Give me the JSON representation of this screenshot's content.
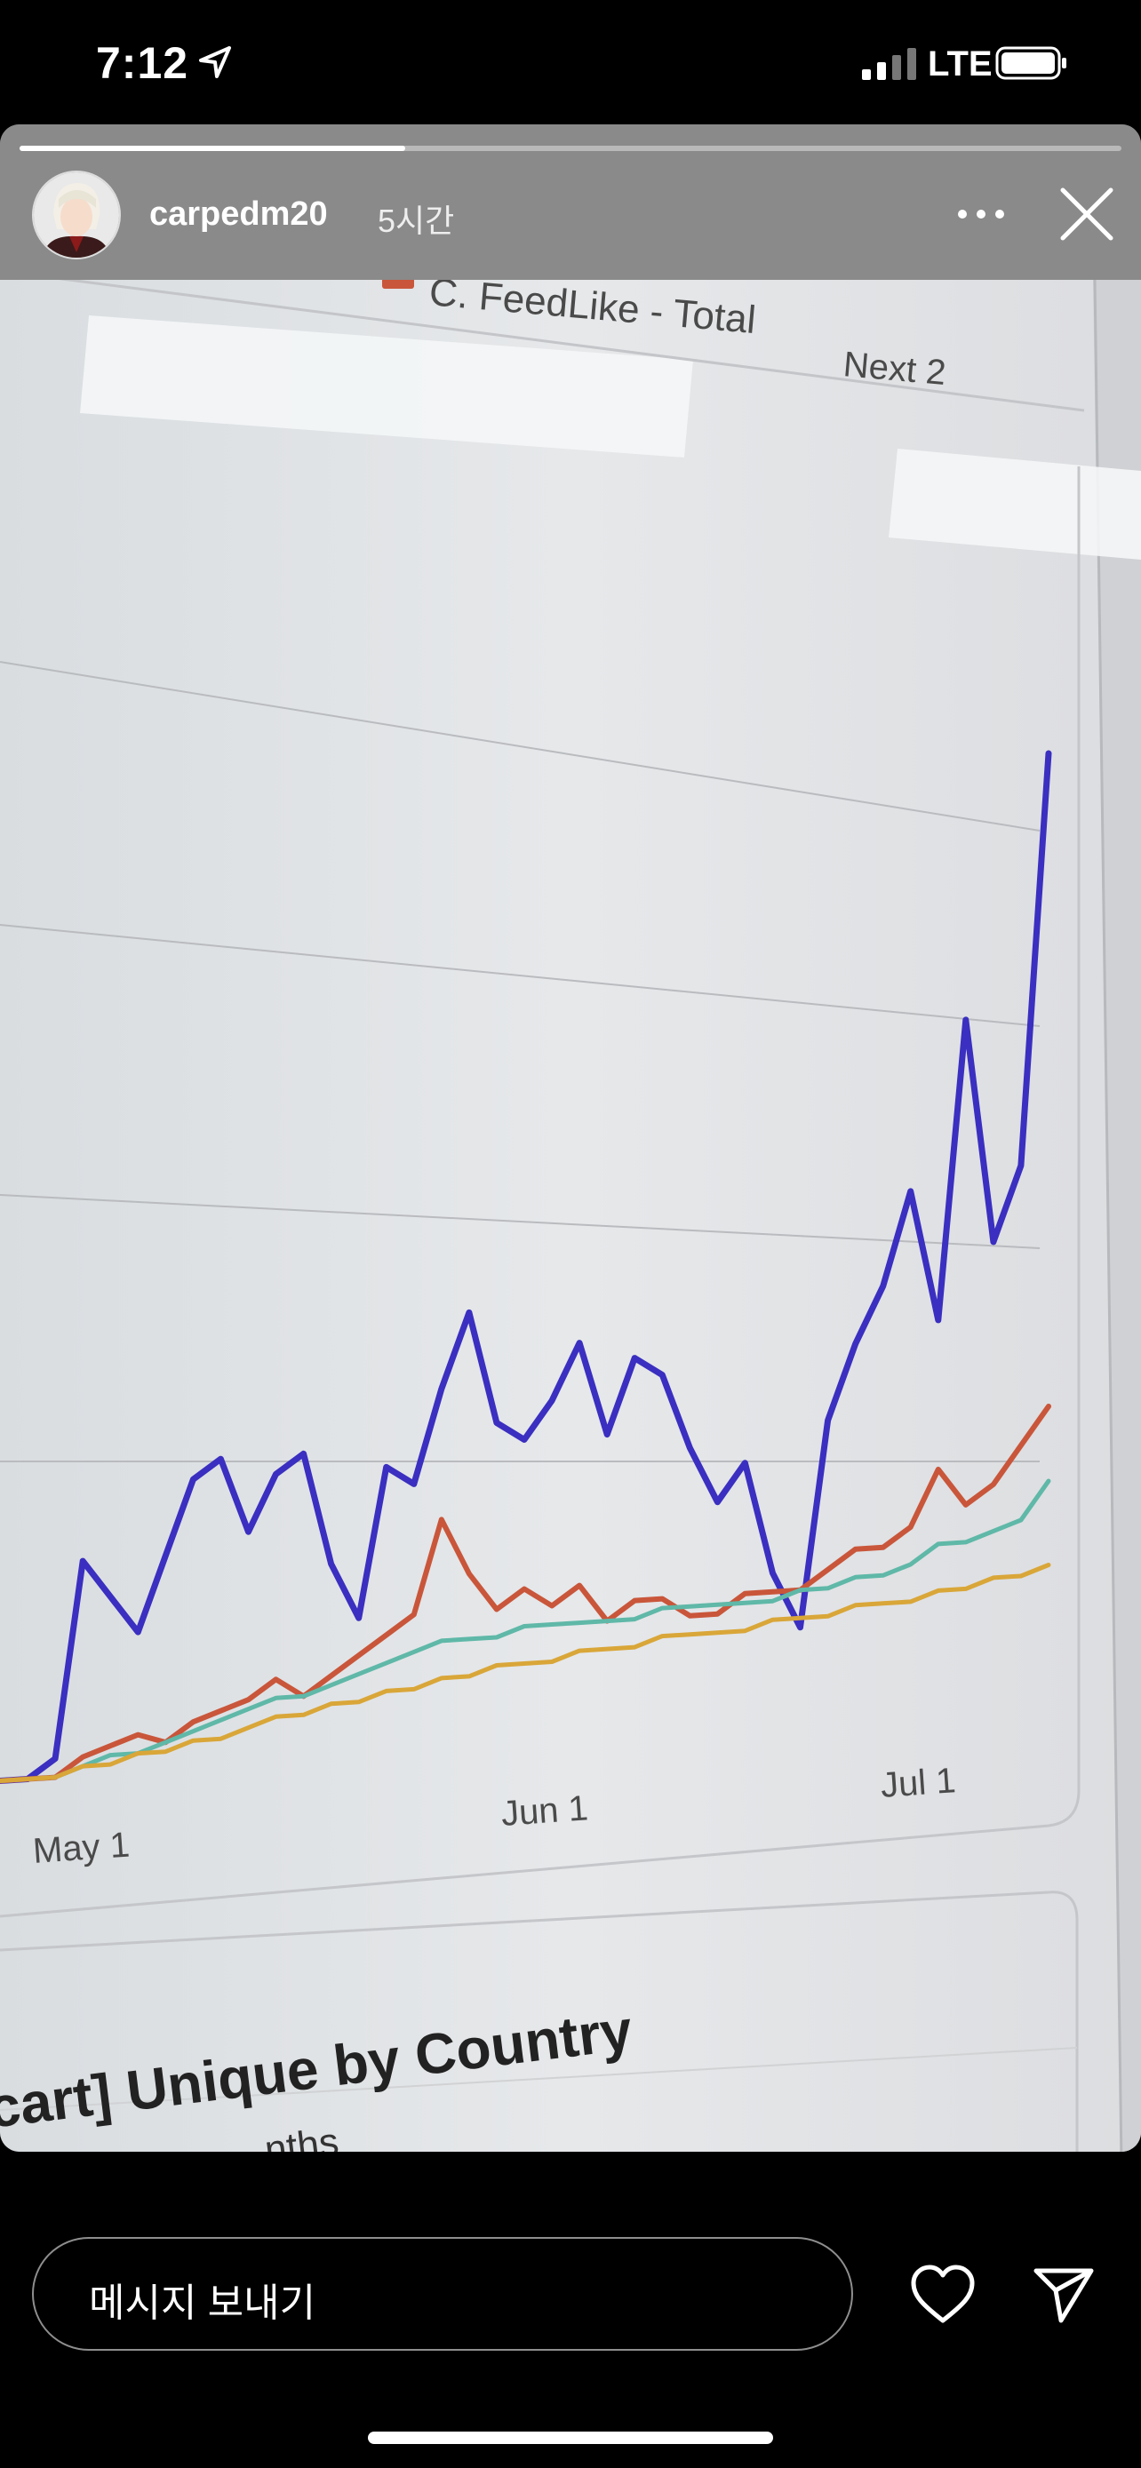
{
  "status_bar": {
    "time": "7:12",
    "network": "LTE",
    "icons": [
      "location-arrow-icon",
      "signal-bars-icon",
      "battery-icon"
    ]
  },
  "story": {
    "username": "carpedm20",
    "time_ago": "5시간",
    "progress": 0.35,
    "header_icons": [
      "more-dots-icon",
      "close-icon"
    ]
  },
  "photo": {
    "legend_item": "C. FeedLike - Total",
    "legend_next": "Next 2",
    "section_heading": "cart] Unique by Country",
    "section_sub": "nths",
    "colors": {
      "series_1": "#3a2fc0",
      "series_2": "#c9563a",
      "series_3": "#5fb8a8",
      "series_4": "#d9a638",
      "screen": "#e4e6e8"
    },
    "chart_data": {
      "type": "line",
      "x_tick_labels": [
        "May 1",
        "Jun 1",
        "Jul 1"
      ],
      "x": [
        "Apr 25",
        "Apr 28",
        "May 1",
        "May 3",
        "May 5",
        "May 7",
        "May 9",
        "May 11",
        "May 13",
        "May 15",
        "May 17",
        "May 19",
        "May 21",
        "May 23",
        "May 25",
        "May 27",
        "May 29",
        "May 31",
        "Jun 2",
        "Jun 4",
        "Jun 6",
        "Jun 8",
        "Jun 10",
        "Jun 12",
        "Jun 14",
        "Jun 16",
        "Jun 18",
        "Jun 20",
        "Jun 22",
        "Jun 24",
        "Jun 26",
        "Jun 28",
        "Jun 30",
        "Jul 2",
        "Jul 4",
        "Jul 6",
        "Jul 8",
        "Jul 10",
        "Jul 12"
      ],
      "series": [
        {
          "values": [
            0.5,
            0.5,
            1.5,
            12,
            10,
            8,
            12,
            16,
            17,
            13,
            16,
            17,
            11,
            8,
            16,
            15,
            20,
            24,
            18,
            17,
            19,
            22,
            17,
            21,
            20,
            16,
            13,
            15,
            9,
            6,
            17,
            21,
            24,
            29,
            22,
            38,
            26,
            30,
            52
          ]
        },
        {
          "values": [
            0.5,
            0.5,
            0.5,
            1.5,
            2,
            2.5,
            2,
            3,
            3.5,
            4,
            5,
            4,
            5,
            6,
            7,
            8,
            13,
            10,
            8,
            9,
            8,
            9,
            7,
            8,
            8,
            7,
            7,
            8,
            8,
            8,
            9,
            10,
            10,
            11,
            14,
            12,
            13,
            15,
            17
          ]
        },
        {
          "values": [
            0.5,
            0.5,
            0.5,
            1,
            1.5,
            1.5,
            2,
            2.5,
            3,
            3.5,
            4,
            4,
            4.5,
            5,
            5.5,
            6,
            6.5,
            6.5,
            6.5,
            7,
            7,
            7,
            7,
            7,
            7.5,
            7.5,
            7.5,
            7.5,
            7.5,
            8,
            8,
            8.5,
            8.5,
            9,
            10,
            10,
            10.5,
            11,
            13
          ]
        },
        {
          "values": [
            0.5,
            0.5,
            0.5,
            1,
            1,
            1.5,
            1.5,
            2,
            2,
            2.5,
            3,
            3,
            3.5,
            3.5,
            4,
            4,
            4.5,
            4.5,
            5,
            5,
            5,
            5.5,
            5.5,
            5.5,
            6,
            6,
            6,
            6,
            6.5,
            6.5,
            6.5,
            7,
            7,
            7,
            7.5,
            7.5,
            8,
            8,
            8.5
          ]
        }
      ],
      "ylim": [
        0,
        60
      ],
      "grid": true
    }
  },
  "reply": {
    "placeholder": "메시지 보내기",
    "icons": [
      "heart-icon",
      "send-icon"
    ]
  }
}
